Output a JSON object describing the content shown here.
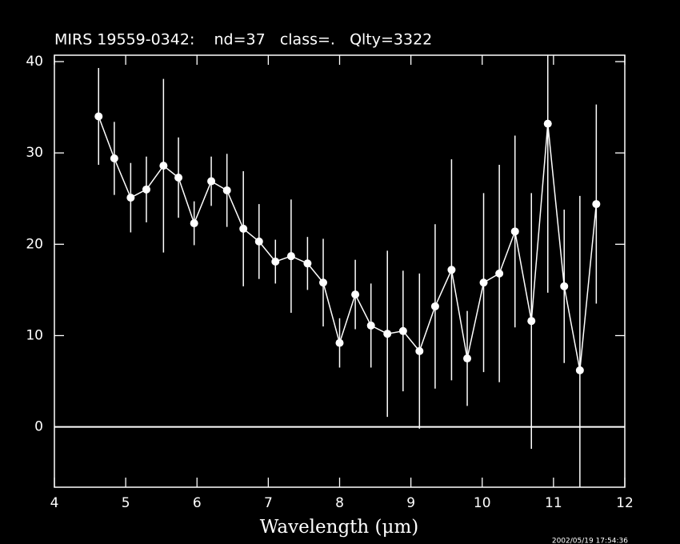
{
  "chart_data": {
    "type": "errorbar",
    "title": "MIRS 19559-0342:    nd=37   class=.   Qlty=3322",
    "xlabel": "Wavelength (μm)",
    "timestamp": "2002/05/19 17:54:36",
    "x": [
      4.62,
      4.84,
      5.07,
      5.29,
      5.53,
      5.74,
      5.96,
      6.2,
      6.42,
      6.65,
      6.87,
      7.1,
      7.32,
      7.55,
      7.77,
      8.0,
      8.22,
      8.44,
      8.67,
      8.89,
      9.12,
      9.34,
      9.57,
      9.79,
      10.02,
      10.24,
      10.46,
      10.69,
      10.92,
      11.15,
      11.37,
      11.6
    ],
    "series": [
      {
        "color": "#ffffff",
        "values": [
          34.0,
          29.4,
          25.1,
          26.0,
          28.6,
          27.3,
          22.3,
          26.9,
          25.9,
          21.7,
          20.3,
          18.1,
          18.7,
          17.9,
          15.8,
          9.2,
          14.5,
          11.1,
          10.2,
          10.5,
          8.3,
          13.2,
          17.2,
          7.5,
          15.8,
          16.8,
          21.4,
          11.6,
          33.2,
          15.4,
          6.2,
          24.4
        ],
        "errors": [
          5.3,
          4.0,
          3.8,
          3.6,
          9.5,
          4.4,
          2.4,
          2.7,
          4.0,
          6.3,
          4.1,
          2.4,
          6.2,
          2.9,
          4.8,
          2.7,
          3.8,
          4.6,
          9.1,
          6.6,
          8.5,
          9.0,
          12.1,
          5.2,
          9.8,
          11.9,
          10.5,
          14.0,
          18.5,
          8.4,
          19.1,
          10.9
        ]
      }
    ],
    "hline": 0,
    "xlim": [
      4,
      12
    ],
    "xticks": [
      4,
      5,
      6,
      7,
      8,
      9,
      10,
      11,
      12
    ],
    "ylim": [
      -6.6,
      40.7
    ],
    "yticks": [
      0,
      10,
      20,
      30,
      40
    ],
    "grid": false
  }
}
